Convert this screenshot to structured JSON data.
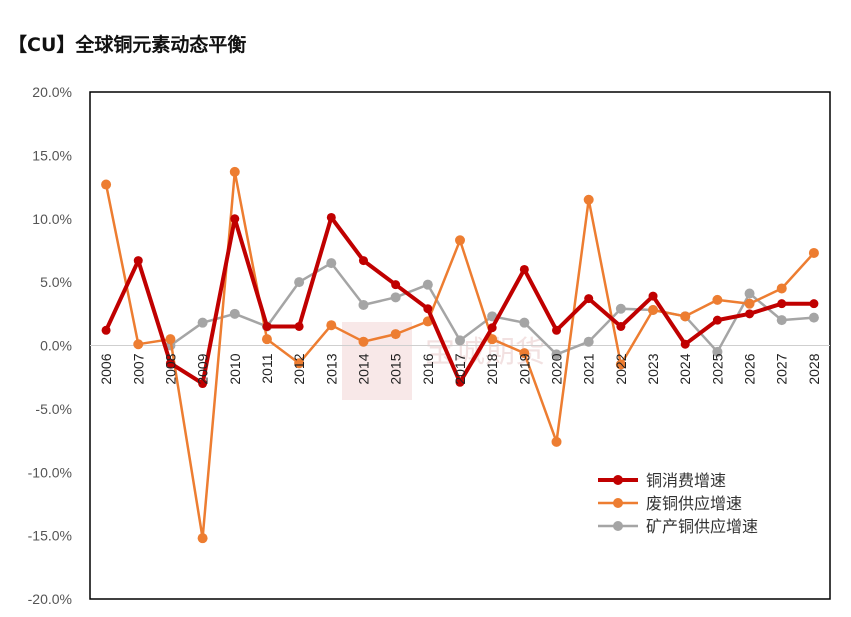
{
  "chart_data": {
    "type": "line",
    "title": "【CU】全球铜元素动态平衡",
    "xlabel": "",
    "ylabel": "",
    "ylim": [
      -20,
      20
    ],
    "yticks": [
      20,
      15,
      10,
      5,
      0,
      -5,
      -10,
      -15,
      -20
    ],
    "ytick_labels": [
      "20.0%",
      "15.0%",
      "10.0%",
      "5.0%",
      "0.0%",
      "-5.0%",
      "-10.0%",
      "-15.0%",
      "-20.0%"
    ],
    "categories": [
      "2006",
      "2007",
      "2008",
      "2009",
      "2010",
      "2011",
      "2012",
      "2013",
      "2014",
      "2015",
      "2016",
      "2017",
      "2018",
      "2019",
      "2020",
      "2021",
      "2022",
      "2023",
      "2024",
      "2025",
      "2026",
      "2027",
      "2028"
    ],
    "legend_position": "bottom-right",
    "series": [
      {
        "name": "铜消费增速",
        "color": "#c00000",
        "width": 4,
        "values": [
          1.2,
          6.7,
          -1.4,
          -3.0,
          10.0,
          1.5,
          1.5,
          10.1,
          6.7,
          4.8,
          2.9,
          -2.9,
          1.4,
          6.0,
          1.2,
          3.7,
          1.5,
          3.9,
          0.1,
          2.0,
          2.5,
          3.3,
          3.3
        ]
      },
      {
        "name": "废铜供应增速",
        "color": "#ed7d31",
        "width": 2.5,
        "values": [
          12.7,
          0.1,
          0.5,
          -15.2,
          13.7,
          0.5,
          -1.4,
          1.6,
          0.3,
          0.9,
          1.9,
          8.3,
          0.5,
          -0.6,
          -7.6,
          11.5,
          -1.5,
          2.8,
          2.3,
          3.6,
          3.3,
          4.5,
          7.3
        ]
      },
      {
        "name": "矿产铜供应增速",
        "color": "#a5a5a5",
        "width": 2.5,
        "values": [
          null,
          null,
          0.0,
          1.8,
          2.5,
          1.5,
          5.0,
          6.5,
          3.2,
          3.8,
          4.8,
          0.4,
          2.3,
          1.8,
          -0.7,
          0.3,
          2.9,
          2.8,
          2.3,
          -0.5,
          4.1,
          2.0,
          2.2
        ]
      }
    ]
  },
  "watermark": "宝城期货"
}
